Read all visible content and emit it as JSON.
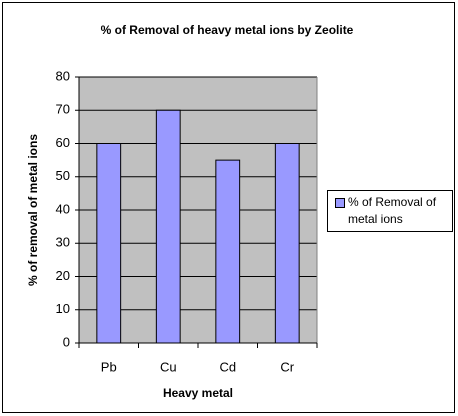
{
  "chart_data": {
    "type": "bar",
    "title": "% of Removal of heavy metal ions by Zeolite",
    "x_label": "Heavy metal",
    "y_label": "% of removal of metal ions",
    "categories": [
      "Pb",
      "Cu",
      "Cd",
      "Cr"
    ],
    "series": [
      {
        "name": "% of Removal of metal ions",
        "color": "#9999ff",
        "values": [
          60,
          70,
          55,
          60
        ]
      }
    ],
    "ylim": [
      0,
      80
    ],
    "yticks": [
      0,
      10,
      20,
      30,
      40,
      50,
      60,
      70,
      80
    ],
    "grid": true,
    "legend": "right"
  }
}
